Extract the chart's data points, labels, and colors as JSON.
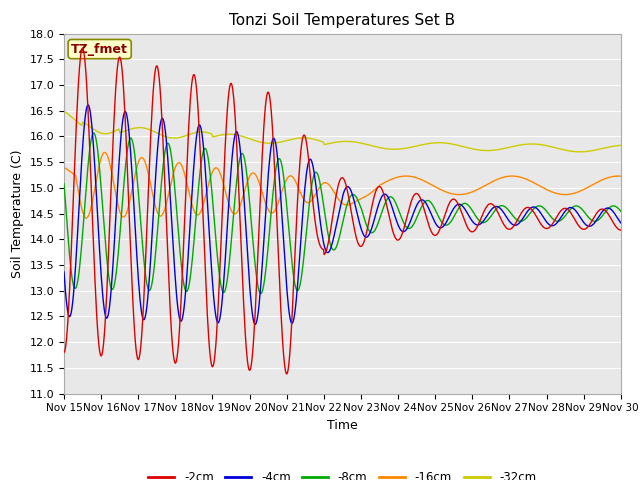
{
  "title": "Tonzi Soil Temperatures Set B",
  "xlabel": "Time",
  "ylabel": "Soil Temperature (C)",
  "ylim": [
    11.0,
    18.0
  ],
  "yticks": [
    11.0,
    11.5,
    12.0,
    12.5,
    13.0,
    13.5,
    14.0,
    14.5,
    15.0,
    15.5,
    16.0,
    16.5,
    17.0,
    17.5,
    18.0
  ],
  "xtick_labels": [
    "Nov 15",
    "Nov 16",
    "Nov 17",
    "Nov 18",
    "Nov 19",
    "Nov 20",
    "Nov 21",
    "Nov 22",
    "Nov 23",
    "Nov 24",
    "Nov 25",
    "Nov 26",
    "Nov 27",
    "Nov 28",
    "Nov 29",
    "Nov 30"
  ],
  "legend_labels": [
    "-2cm",
    "-4cm",
    "-8cm",
    "-16cm",
    "-32cm"
  ],
  "line_colors": [
    "#dd0000",
    "#0000dd",
    "#00aa00",
    "#ff8800",
    "#cccc00"
  ],
  "annotation_text": "TZ_fmet",
  "annotation_bg": "#ffffcc",
  "annotation_border": "#888800",
  "annotation_text_color": "#880000",
  "plot_bg": "#e8e8e8",
  "fig_bg": "#ffffff",
  "grid_color": "#ffffff",
  "title_fontsize": 11,
  "label_fontsize": 9,
  "tick_fontsize": 8
}
